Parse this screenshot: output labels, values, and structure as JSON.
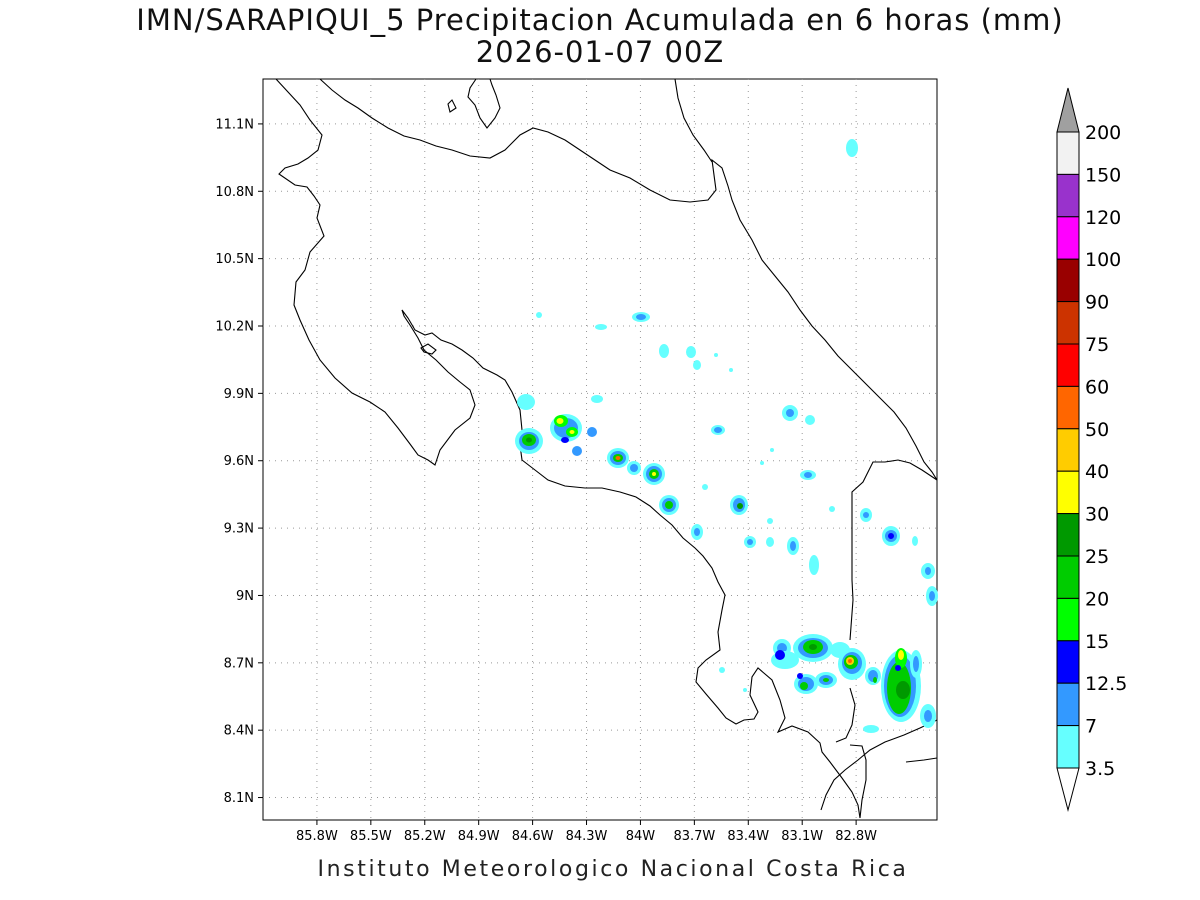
{
  "title": {
    "line1": "IMN/SARAPIQUI_5 Precipitacion Acumulada en 6 horas (mm)",
    "line2": "2026-01-07 00Z"
  },
  "footer": "Instituto Meteorologico Nacional Costa Rica",
  "map": {
    "region": "Costa Rica",
    "lon_range": [
      -86.1,
      -82.35
    ],
    "lat_range": [
      8.0,
      11.3
    ],
    "lat_ticks": [
      "11.1N",
      "10.8N",
      "10.5N",
      "10.2N",
      "9.9N",
      "9.6N",
      "9.3N",
      "9N",
      "8.7N",
      "8.4N",
      "8.1N"
    ],
    "lon_ticks": [
      "85.8W",
      "85.5W",
      "85.2W",
      "84.9W",
      "84.6W",
      "84.3W",
      "84W",
      "83.7W",
      "83.4W",
      "83.1W",
      "82.8W"
    ],
    "grid": "dotted"
  },
  "legend": {
    "unit": "mm",
    "labels": [
      "200",
      "150",
      "120",
      "100",
      "90",
      "75",
      "60",
      "50",
      "40",
      "30",
      "25",
      "20",
      "15",
      "12.5",
      "7",
      "3.5"
    ],
    "colors": [
      "#f2f2f2",
      "#9932cc",
      "#ff00ff",
      "#990000",
      "#cc3300",
      "#ff0000",
      "#ff6600",
      "#ffcc00",
      "#ffff00",
      "#009900",
      "#00cc00",
      "#00ff00",
      "#0000ff",
      "#3399ff",
      "#66ffff"
    ],
    "over_color": "#a0a0a0"
  }
}
